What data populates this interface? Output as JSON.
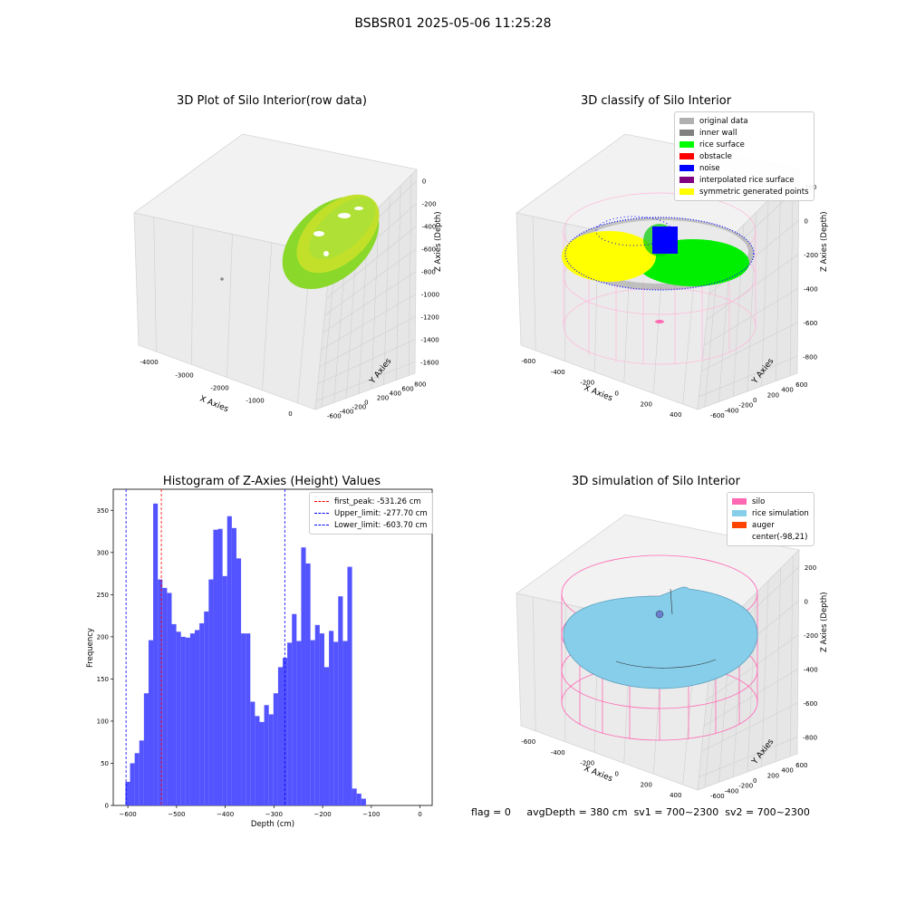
{
  "suptitle": "BSBSR01 2025-05-06 11:25:28",
  "panels": {
    "raw": {
      "title": "3D Plot of Silo Interior(row data)",
      "xlabel": "X Axies",
      "ylabel": "Y Axies",
      "zlabel": "Z Axies (Depth)",
      "xticks": [
        "-4000",
        "-3000",
        "-2000",
        "-1000",
        "0"
      ],
      "yticks": [
        "-600",
        "-400",
        "-200",
        "0",
        "200",
        "400",
        "600",
        "800"
      ],
      "zticks": [
        "0",
        "-200",
        "-400",
        "-600",
        "-800",
        "-1000",
        "-1200",
        "-1400",
        "-1600"
      ]
    },
    "classify": {
      "title": "3D classify of Silo Interior",
      "xlabel": "X Axies",
      "ylabel": "Y Axies",
      "zlabel": "Z Axies (Depth)",
      "xticks": [
        "-600",
        "-400",
        "-200",
        "0",
        "200",
        "400"
      ],
      "yticks": [
        "-600",
        "-400",
        "-200",
        "0",
        "200",
        "400",
        "600"
      ],
      "zticks": [
        "200",
        "0",
        "-200",
        "-400",
        "-600",
        "-800"
      ],
      "legend": [
        {
          "label": "original data",
          "color": "#b0b0b0"
        },
        {
          "label": "inner wall",
          "color": "#808080"
        },
        {
          "label": "rice surface",
          "color": "#00ff00"
        },
        {
          "label": "obstacle",
          "color": "#ff0000"
        },
        {
          "label": "noise",
          "color": "#0000ff"
        },
        {
          "label": "interpolated rice surface",
          "color": "#800080"
        },
        {
          "label": "symmetric generated points",
          "color": "#ffff00"
        }
      ]
    },
    "simulation": {
      "title": "3D simulation of Silo Interior",
      "xlabel": "X Axies",
      "ylabel": "Y Axies",
      "zlabel": "Z Axies (Depth)",
      "xticks": [
        "-600",
        "-400",
        "-200",
        "0",
        "200",
        "400"
      ],
      "yticks": [
        "-600",
        "-400",
        "-200",
        "0",
        "200",
        "400",
        "600"
      ],
      "zticks": [
        "200",
        "0",
        "-200",
        "-400",
        "-600",
        "-800"
      ],
      "legend": [
        {
          "label": "silo",
          "color": "#ff69b4"
        },
        {
          "label": "rice simulation",
          "color": "#87ceeb"
        },
        {
          "label": "auger",
          "color": "#ff4500"
        },
        {
          "label": "center(-98,21)",
          "color": ""
        }
      ]
    }
  },
  "status": {
    "flag": "flag = 0",
    "avgDepth": "avgDepth = 380 cm",
    "sv1": "sv1 = 700~2300",
    "sv2": "sv2 = 700~2300"
  },
  "chart_data": {
    "type": "bar",
    "title": "Histogram of Z-Axies (Height) Values",
    "xlabel": "Depth (cm)",
    "ylabel": "Frequency",
    "xlim": [
      -630,
      25
    ],
    "ylim": [
      0,
      375
    ],
    "bar_color": "#4a4aff",
    "bin_start": -605,
    "bin_width": 9.5,
    "values": [
      28,
      50,
      62,
      77,
      133,
      196,
      358,
      268,
      258,
      252,
      215,
      206,
      200,
      199,
      204,
      208,
      216,
      230,
      268,
      327,
      328,
      272,
      343,
      329,
      293,
      204,
      204,
      123,
      106,
      99,
      119,
      108,
      133,
      164,
      175,
      193,
      227,
      195,
      306,
      287,
      196,
      214,
      204,
      164,
      207,
      194,
      248,
      195,
      283,
      20,
      14,
      8
    ],
    "xticks": [
      -600,
      -500,
      -400,
      -300,
      -200,
      -100,
      0
    ],
    "yticks": [
      0,
      50,
      100,
      150,
      200,
      250,
      300,
      350
    ],
    "vlines": [
      {
        "label": "first_peak: -531.26 cm",
        "x": -531.26,
        "color": "#ff0000"
      },
      {
        "label": "Upper_limit: -277.70 cm",
        "x": -277.7,
        "color": "#0000ff"
      },
      {
        "label": "Lower_limit: -603.70 cm",
        "x": -603.7,
        "color": "#0000ff"
      }
    ],
    "legend_position": "upper right"
  }
}
